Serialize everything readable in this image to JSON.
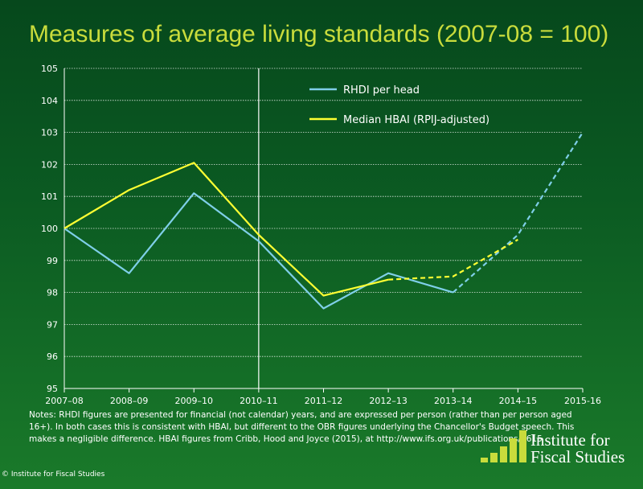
{
  "chart_data": {
    "type": "line",
    "title": "Measures of average living standards (2007-08 = 100)",
    "categories": [
      "2007–08",
      "2008–09",
      "2009–10",
      "2010–11",
      "2011–12",
      "2012–13",
      "2013–14",
      "2014–15",
      "2015-16"
    ],
    "ylim": [
      95,
      105
    ],
    "yticks": [
      95,
      96,
      97,
      98,
      99,
      100,
      101,
      102,
      103,
      104,
      105
    ],
    "grid": true,
    "vline_at": "2010–11",
    "legend_position": "top-center",
    "series": [
      {
        "name": "RHDI per head",
        "color": "#7fcfe8",
        "values": [
          100.0,
          98.6,
          101.1,
          99.6,
          97.5,
          98.6,
          98.0,
          99.8,
          103.0
        ],
        "projected_from_index": 6
      },
      {
        "name": "Median HBAI (RPIJ-adjusted)",
        "color": "#ffff33",
        "values": [
          100.0,
          101.2,
          102.05,
          99.8,
          97.9,
          98.4,
          98.5,
          99.65,
          null
        ],
        "projected_from_index": 5
      }
    ]
  },
  "notes": "Notes: RHDI figures are presented for financial (not calendar) years, and are expressed per person (rather than per person aged 16+). In both cases this is consistent with HBAI, but different to the OBR figures underlying the Chancellor's Budget speech. This makes a negligible difference. HBAI figures from Cribb, Hood and Joyce (2015), at http://www.ifs.org.uk/publications/7615",
  "copyright": "© Institute for Fiscal Studies",
  "logo": {
    "line1": "Institute for",
    "line2": "Fiscal Studies"
  }
}
